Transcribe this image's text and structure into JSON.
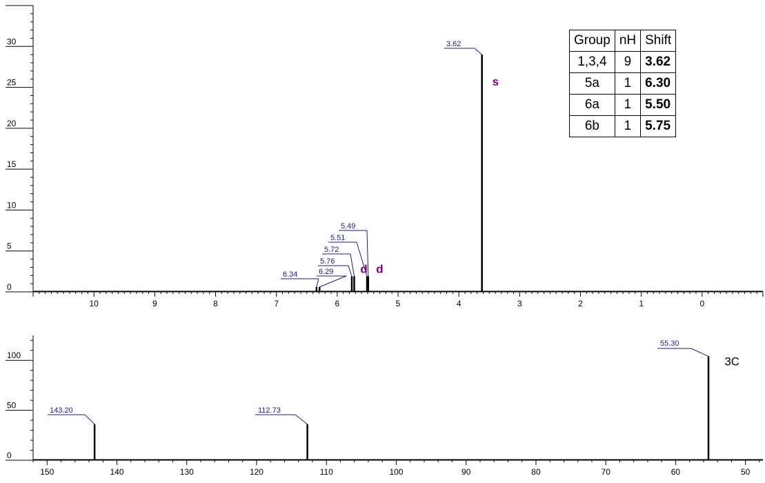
{
  "chart_data": [
    {
      "type": "line",
      "xlim": [
        11.0,
        -1.0
      ],
      "ylim": [
        0,
        35
      ],
      "x_ticks": [
        "10",
        "9",
        "8",
        "7",
        "6",
        "5",
        "4",
        "3",
        "2",
        "1",
        "0"
      ],
      "y_ticks": [
        "0",
        "5",
        "10",
        "15",
        "20",
        "25",
        "30"
      ],
      "peaks": [
        {
          "x": 6.34,
          "y": 0.6,
          "label": "6.34"
        },
        {
          "x": 6.29,
          "y": 0.6,
          "label": "6.29"
        },
        {
          "x": 5.76,
          "y": 1.9,
          "label": "5.76"
        },
        {
          "x": 5.72,
          "y": 1.9,
          "label": "5.72"
        },
        {
          "x": 5.51,
          "y": 1.9,
          "label": "5.51"
        },
        {
          "x": 5.49,
          "y": 1.9,
          "label": "5.49"
        },
        {
          "x": 3.62,
          "y": 29.0,
          "label": "3.62"
        }
      ],
      "multiplicity_labels": [
        {
          "text": "d",
          "x": 5.62,
          "y": 2.3
        },
        {
          "text": "d",
          "x": 5.36,
          "y": 2.3
        },
        {
          "text": "s",
          "x": 3.45,
          "y": 25.2
        }
      ],
      "table": {
        "headers": [
          "Group",
          "nH",
          "Shift"
        ],
        "rows": [
          [
            "1,3,4",
            "9",
            "3.62"
          ],
          [
            "5a",
            "1",
            "6.30"
          ],
          [
            "6a",
            "1",
            "5.50"
          ],
          [
            "6b",
            "1",
            "5.75"
          ]
        ]
      }
    },
    {
      "type": "line",
      "xlim": [
        152.0,
        47.5
      ],
      "ylim": [
        0,
        125
      ],
      "x_ticks": [
        "150",
        "140",
        "130",
        "120",
        "110",
        "100",
        "90",
        "80",
        "70",
        "60",
        "50"
      ],
      "y_ticks": [
        "0",
        "50",
        "100"
      ],
      "peaks": [
        {
          "x": 143.2,
          "y": 36,
          "label": "143.20"
        },
        {
          "x": 112.73,
          "y": 36,
          "label": "112.73"
        },
        {
          "x": 55.3,
          "y": 104,
          "label": "55.30"
        }
      ],
      "annotations": [
        {
          "text": "3C",
          "x": 53.0,
          "y": 95
        }
      ]
    }
  ],
  "colors": {
    "peak_label": "#1a1a8c",
    "multiplicity": "#800080",
    "axis": "#000000"
  }
}
